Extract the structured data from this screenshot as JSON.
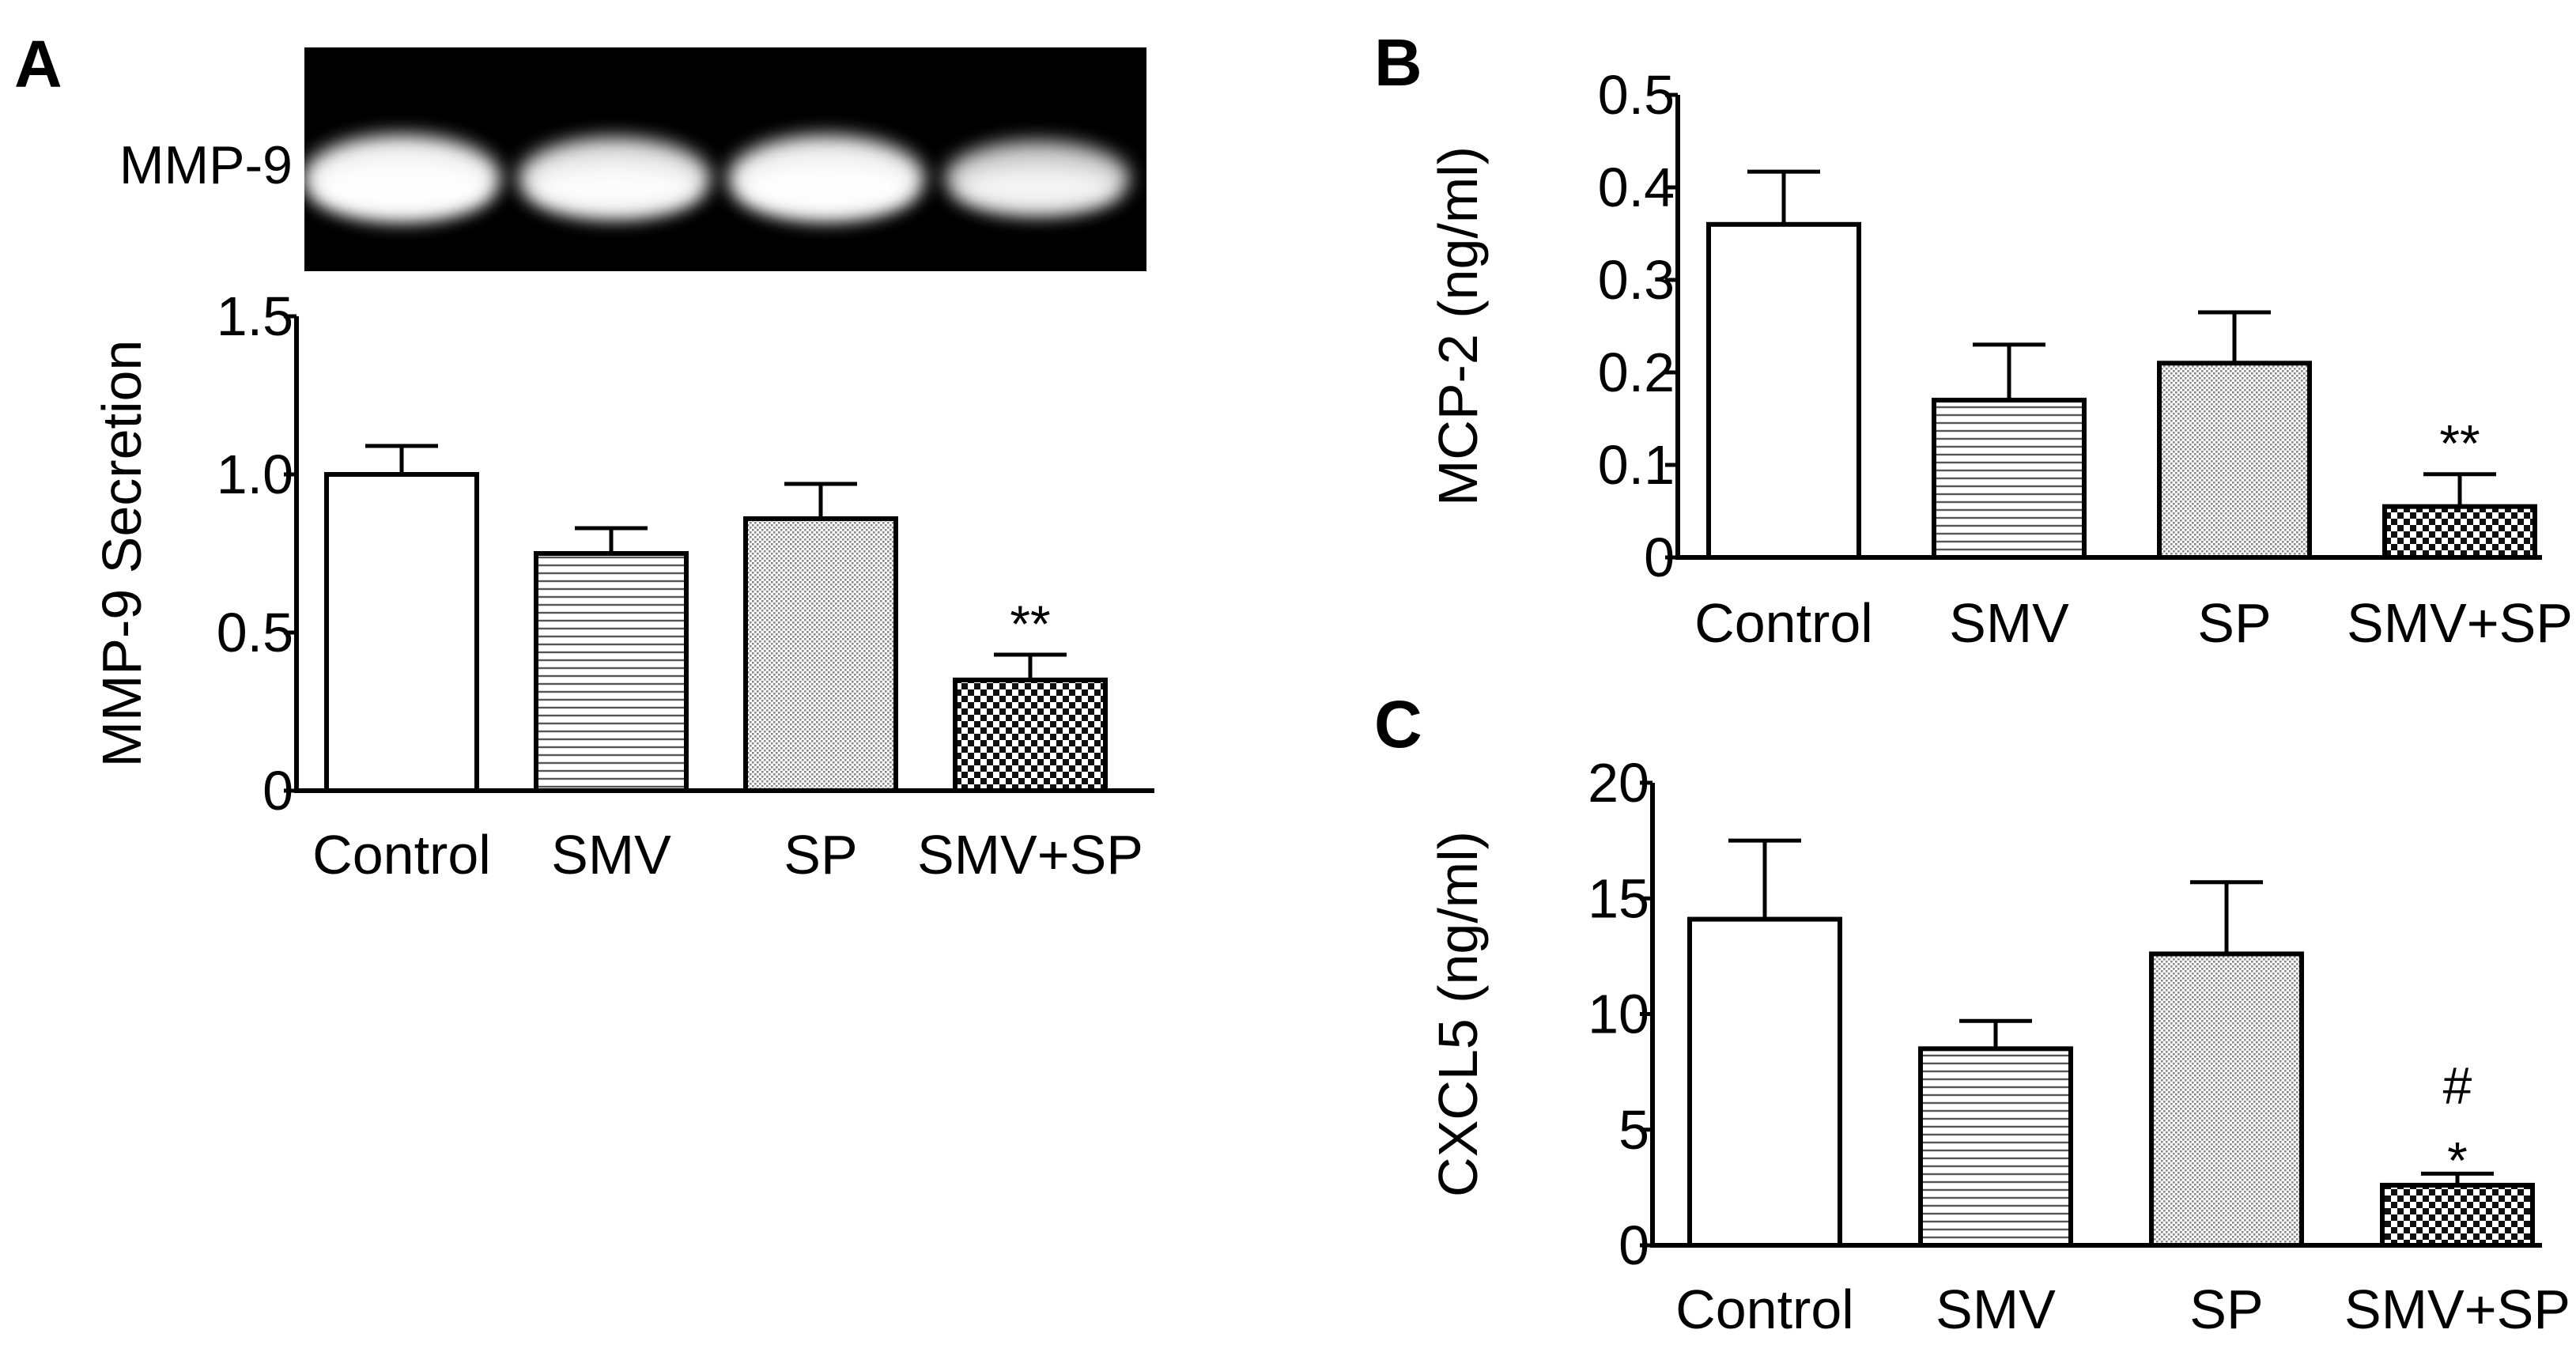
{
  "panels": {
    "A": {
      "letter": "A",
      "gel": {
        "label": "MMP-9",
        "lanes": [
          0.98,
          0.82,
          0.95,
          0.6
        ]
      },
      "chart_data": {
        "type": "bar",
        "title": "",
        "xlabel": "",
        "ylabel": "MMP-9 Secretion",
        "categories": [
          "Control",
          "SMV",
          "SP",
          "SMV+SP"
        ],
        "series": [
          {
            "values": [
              1.0,
              0.75,
              0.86,
              0.35
            ],
            "errors": [
              0.09,
              0.08,
              0.11,
              0.08
            ]
          }
        ],
        "ylim": [
          0,
          1.5
        ],
        "yticks": [
          0,
          0.5,
          1.0,
          1.5
        ],
        "ytick_labels": [
          "0",
          "0.5",
          "1.0",
          "1.5"
        ],
        "fills": [
          "white",
          "hlines",
          "dots",
          "checker"
        ],
        "annotations": [
          {
            "category": "SMV+SP",
            "text": "**"
          }
        ],
        "grid": false
      }
    },
    "B": {
      "letter": "B",
      "chart_data": {
        "type": "bar",
        "title": "",
        "xlabel": "",
        "ylabel": "MCP-2 (ng/ml)",
        "categories": [
          "Control",
          "SMV",
          "SP",
          "SMV+SP"
        ],
        "series": [
          {
            "values": [
              0.36,
              0.17,
              0.21,
              0.055
            ],
            "errors": [
              0.057,
              0.06,
              0.055,
              0.035
            ]
          }
        ],
        "ylim": [
          0,
          0.5
        ],
        "yticks": [
          0,
          0.1,
          0.2,
          0.3,
          0.4,
          0.5
        ],
        "ytick_labels": [
          "0",
          "0.1",
          "0.2",
          "0.3",
          "0.4",
          "0.5"
        ],
        "fills": [
          "white",
          "hlines",
          "dots",
          "checker"
        ],
        "annotations": [
          {
            "category": "SMV+SP",
            "text": "**"
          }
        ],
        "grid": false
      }
    },
    "C": {
      "letter": "C",
      "chart_data": {
        "type": "bar",
        "title": "",
        "xlabel": "",
        "ylabel": "CXCL5 (ng/ml)",
        "categories": [
          "Control",
          "SMV",
          "SP",
          "SMV+SP"
        ],
        "series": [
          {
            "values": [
              14.1,
              8.5,
              12.6,
              2.6
            ],
            "errors": [
              3.4,
              1.2,
              3.1,
              0.5
            ]
          }
        ],
        "ylim": [
          0,
          20
        ],
        "yticks": [
          0,
          5,
          10,
          15,
          20
        ],
        "ytick_labels": [
          "0",
          "5",
          "10",
          "15",
          "20"
        ],
        "fills": [
          "white",
          "hlines",
          "dots",
          "checker"
        ],
        "annotations": [
          {
            "category": "SMV+SP",
            "text": "*"
          },
          {
            "category": "SMV+SP",
            "text": "#"
          }
        ],
        "grid": false
      }
    }
  }
}
